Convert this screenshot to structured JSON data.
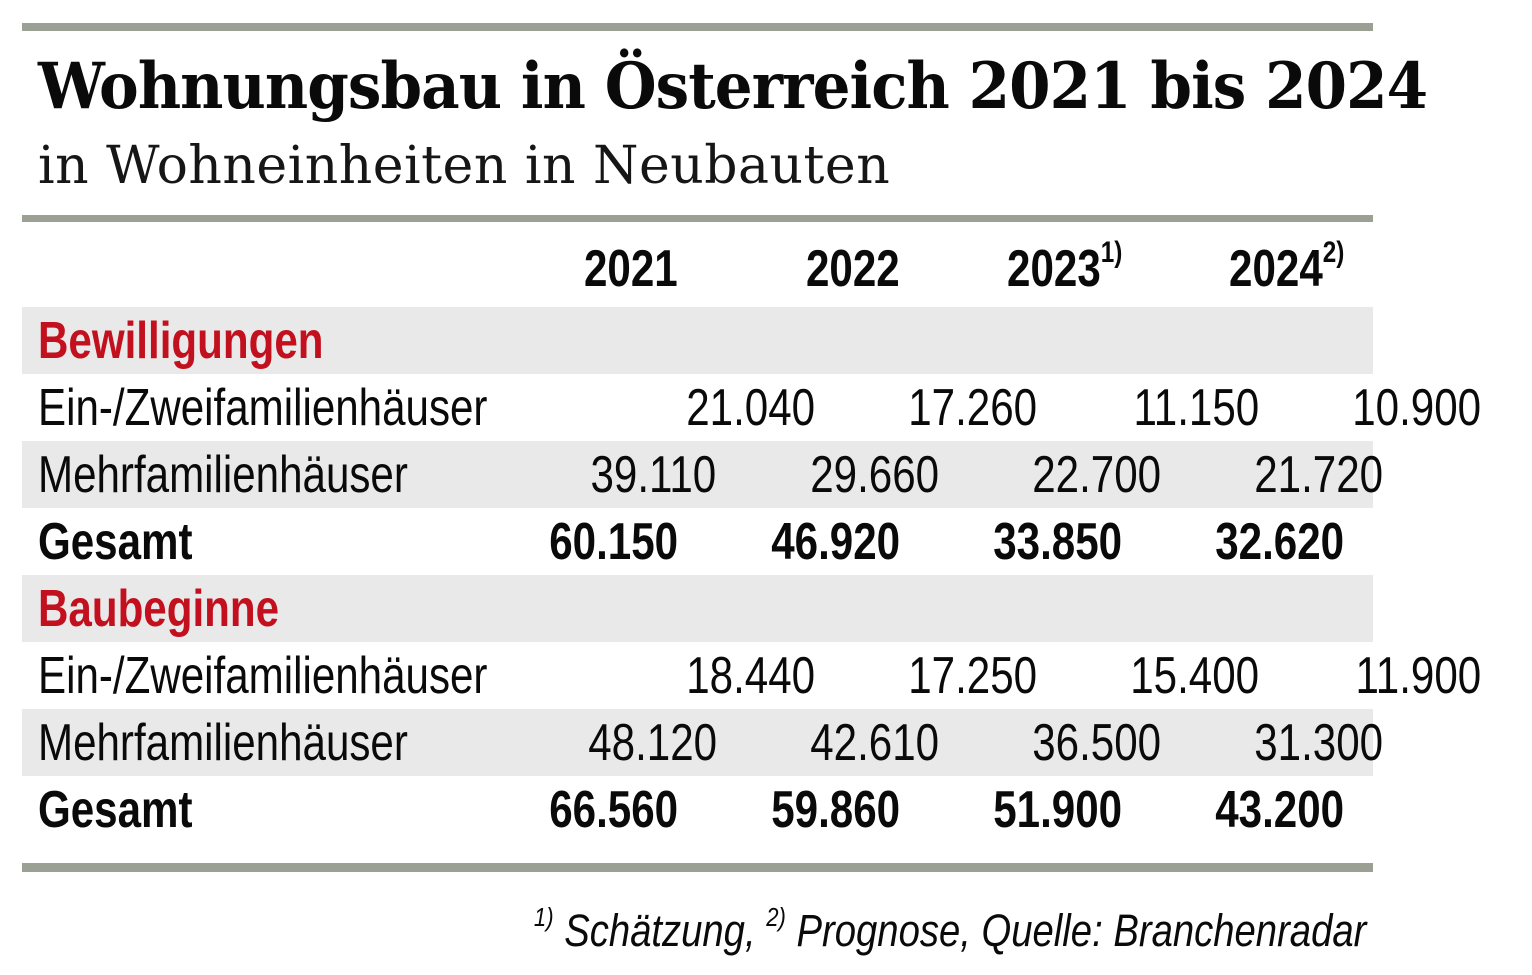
{
  "page": {
    "title": "Wohnungsbau in Österreich 2021 bis 2024",
    "subtitle": "in Wohneinheiten in Neubauten"
  },
  "colors": {
    "accent_red": "#c2101e",
    "row_band_gray": "#e9e9e9",
    "rule_sage": "#9ba094",
    "text_black": "#0a0a0a"
  },
  "table": {
    "years": [
      {
        "label": "2021",
        "sup": ""
      },
      {
        "label": "2022",
        "sup": ""
      },
      {
        "label": "2023",
        "sup": "1)"
      },
      {
        "label": "2024",
        "sup": "2)"
      }
    ],
    "sections": [
      {
        "name": "Bewilligungen",
        "rows": [
          {
            "label": "Ein-/Zweifamilienhäuser",
            "values": [
              "21.040",
              "17.260",
              "11.150",
              "10.900"
            ]
          },
          {
            "label": "Mehrfamilienhäuser",
            "values": [
              "39.110",
              "29.660",
              "22.700",
              "21.720"
            ]
          },
          {
            "label": "Gesamt",
            "values": [
              "60.150",
              "46.920",
              "33.850",
              "32.620"
            ]
          }
        ]
      },
      {
        "name": "Baubeginne",
        "rows": [
          {
            "label": "Ein-/Zweifamilienhäuser",
            "values": [
              "18.440",
              "17.250",
              "15.400",
              "11.900"
            ]
          },
          {
            "label": "Mehrfamilienhäuser",
            "values": [
              "48.120",
              "42.610",
              "36.500",
              "31.300"
            ]
          },
          {
            "label": "Gesamt",
            "values": [
              "66.560",
              "59.860",
              "51.900",
              "43.200"
            ]
          }
        ]
      }
    ]
  },
  "footnote": {
    "marker1": "1)",
    "text1": "Schätzung,",
    "marker2": "2)",
    "text2": "Prognose, Quelle: Branchenradar"
  },
  "chart_data": {
    "type": "table",
    "title": "Wohnungsbau in Österreich 2021 bis 2024",
    "subtitle": "in Wohneinheiten in Neubauten",
    "columns": [
      "2021",
      "2022",
      "2023",
      "2024"
    ],
    "column_footnotes": {
      "2023": "1) Schätzung",
      "2024": "2) Prognose"
    },
    "sections": [
      {
        "name": "Bewilligungen",
        "rows": [
          {
            "label": "Ein-/Zweifamilienhäuser",
            "values": [
              21040,
              17260,
              11150,
              10900
            ]
          },
          {
            "label": "Mehrfamilienhäuser",
            "values": [
              39110,
              29660,
              22700,
              21720
            ]
          },
          {
            "label": "Gesamt",
            "values": [
              60150,
              46920,
              33850,
              32620
            ]
          }
        ]
      },
      {
        "name": "Baubeginne",
        "rows": [
          {
            "label": "Ein-/Zweifamilienhäuser",
            "values": [
              18440,
              17250,
              15400,
              11900
            ]
          },
          {
            "label": "Mehrfamilienhäuser",
            "values": [
              48120,
              42610,
              36500,
              31300
            ]
          },
          {
            "label": "Gesamt",
            "values": [
              66560,
              59860,
              51900,
              43200
            ]
          }
        ]
      }
    ],
    "source": "Branchenradar"
  }
}
